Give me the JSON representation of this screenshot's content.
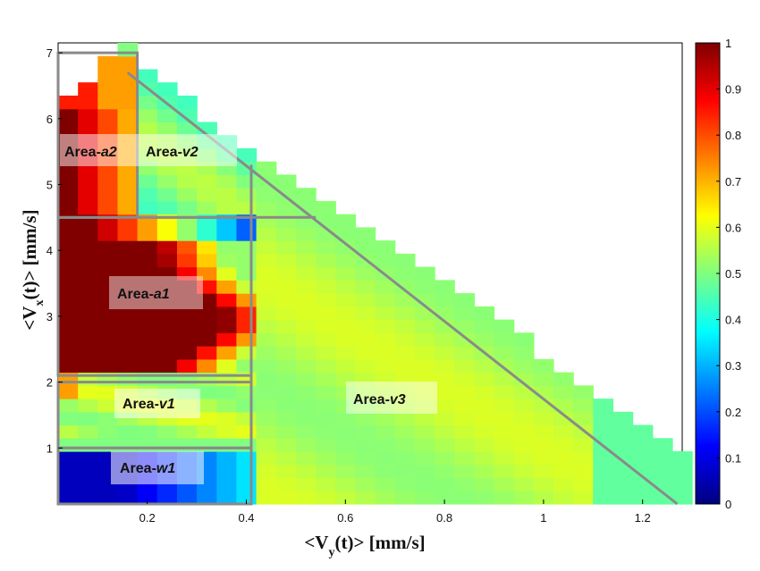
{
  "chart_data": {
    "type": "heatmap",
    "title": "",
    "xlabel": "<V_y(t)> [mm/s]",
    "ylabel": "<V_x(t)> [mm/s]",
    "xlim": [
      0.02,
      1.28
    ],
    "ylim": [
      0.15,
      7.15
    ],
    "x_ticks": [
      "0.2",
      "0.4",
      "0.6",
      "0.8",
      "1",
      "1.2"
    ],
    "x_tick_values": [
      0.2,
      0.4,
      0.6,
      0.8,
      1.0,
      1.2
    ],
    "y_ticks": [
      "1",
      "2",
      "3",
      "4",
      "5",
      "6",
      "7"
    ],
    "y_tick_values": [
      1,
      2,
      3,
      4,
      5,
      6,
      7
    ],
    "colorbar": {
      "range": [
        0,
        1
      ],
      "ticks": [
        "0",
        "0.1",
        "0.2",
        "0.3",
        "0.4",
        "0.5",
        "0.6",
        "0.7",
        "0.8",
        "0.9",
        "1"
      ],
      "colormap": "jet"
    },
    "cell_size": {
      "dx": 0.04,
      "dy": 0.2
    },
    "regions": [
      {
        "name": "Area-a2",
        "prefix": "Area-",
        "suffix": "a2",
        "x": [
          0.02,
          0.18
        ],
        "y": [
          4.5,
          7.0
        ]
      },
      {
        "name": "Area-v2",
        "prefix": "Area-",
        "suffix": "v2",
        "x": [
          0.18,
          0.54
        ],
        "y": [
          4.5,
          6.7
        ]
      },
      {
        "name": "Area-a1",
        "prefix": "Area-",
        "suffix": "a1",
        "x": [
          0.02,
          0.41
        ],
        "y": [
          2.1,
          4.5
        ]
      },
      {
        "name": "Area-v1",
        "prefix": "Area-",
        "suffix": "v1",
        "x": [
          0.02,
          0.41
        ],
        "y": [
          1.0,
          2.0
        ]
      },
      {
        "name": "Area-w1",
        "prefix": "Area-",
        "suffix": "w1",
        "x": [
          0.02,
          0.41
        ],
        "y": [
          0.15,
          1.0
        ]
      },
      {
        "name": "Area-v3",
        "prefix": "Area-",
        "suffix": "v3",
        "x": [
          0.41,
          1.27
        ],
        "y": [
          0.15,
          5.3
        ]
      }
    ],
    "grid": false,
    "legend": "colorbar-right"
  },
  "colors": {
    "frame": "#8a8a8a",
    "background": "#ffffff"
  }
}
